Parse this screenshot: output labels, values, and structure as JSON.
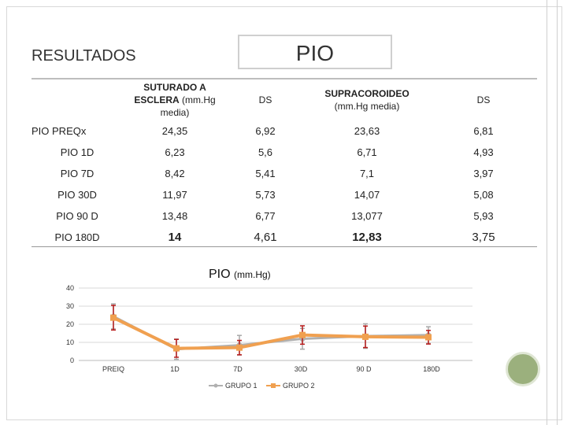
{
  "header": {
    "section_title": "RESULTADOS",
    "box_title": "PIO"
  },
  "table": {
    "columns": [
      {
        "bold": "SUTURADO A ESCLERA",
        "rest": " (mm.Hg media)"
      },
      {
        "bold": "",
        "rest": "DS"
      },
      {
        "bold": "SUPRACOROIDEO",
        "rest": "(mm.Hg media)"
      },
      {
        "bold": "",
        "rest": "DS"
      }
    ],
    "rows": [
      {
        "label": "PIO PREQx",
        "c1": "24,35",
        "c2": "6,92",
        "c3": "23,63",
        "c4": "6,81"
      },
      {
        "label": "PIO 1D",
        "c1": "6,23",
        "c2": "5,6",
        "c3": "6,71",
        "c4": "4,93"
      },
      {
        "label": "PIO 7D",
        "c1": "8,42",
        "c2": "5,41",
        "c3": "7,1",
        "c4": "3,97"
      },
      {
        "label": "PIO 30D",
        "c1": "11,97",
        "c2": "5,73",
        "c3": "14,07",
        "c4": "5,08"
      },
      {
        "label": "PIO 90 D",
        "c1": "13,48",
        "c2": "6,77",
        "c3": "13,077",
        "c4": "5,93"
      },
      {
        "label": "PIO 180D",
        "c1": "14",
        "c2": "4,61",
        "c3": "12,83",
        "c4": "3,75"
      }
    ]
  },
  "chart_title": {
    "main": "PIO",
    "unit": "(mm.Hg)"
  },
  "chart_data": {
    "type": "line",
    "title": "PIO (mm.Hg)",
    "categories": [
      "PREIQ",
      "1D",
      "7D",
      "30D",
      "90 D",
      "180D"
    ],
    "ylim": [
      0,
      40
    ],
    "yticks": [
      "0",
      "10",
      "20",
      "30",
      "40"
    ],
    "legend_position": "bottom",
    "series": [
      {
        "name": "GRUPO 1",
        "color": "#b0b0b0",
        "values": [
          24.35,
          6.23,
          8.42,
          11.97,
          13.48,
          14
        ],
        "errors": [
          6.92,
          5.6,
          5.41,
          5.73,
          6.77,
          4.61
        ]
      },
      {
        "name": "GRUPO 2",
        "color": "#f0a050",
        "values": [
          23.63,
          6.71,
          7.1,
          14.07,
          13.077,
          12.83
        ],
        "errors": [
          6.81,
          4.93,
          3.97,
          5.08,
          5.93,
          3.75
        ]
      }
    ],
    "error_bar_color": "#b81c1c"
  }
}
